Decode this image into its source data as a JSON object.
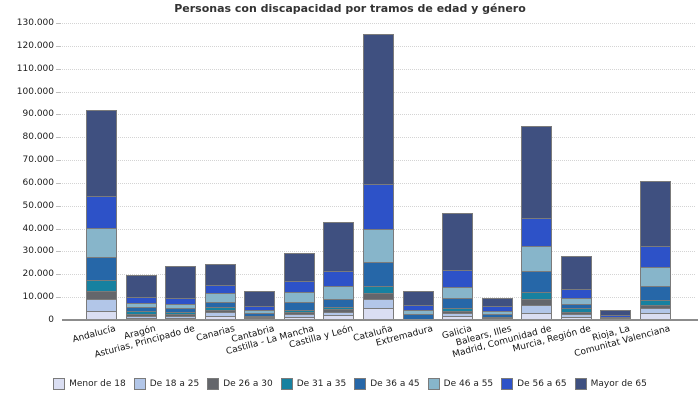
{
  "chart_data": {
    "type": "bar",
    "stacked": true,
    "title": "Personas con discapacidad por tramos de edad y género",
    "xlabel": "",
    "ylabel": "",
    "ylim": [
      0,
      130000
    ],
    "grid": "horizontal-dotted",
    "legend_position": "bottom",
    "y_tick_values": [
      0,
      10000,
      20000,
      30000,
      40000,
      50000,
      60000,
      70000,
      80000,
      90000,
      100000,
      110000,
      120000,
      130000
    ],
    "y_tick_labels": [
      "0",
      "10.000",
      "20.000",
      "30.000",
      "40.000",
      "50.000",
      "60.000",
      "70.000",
      "80.000",
      "90.000",
      "100.000",
      "110.000",
      "120.000",
      "130.000"
    ],
    "categories": [
      "Andalucía",
      "Aragón",
      "Asturias, Principado de",
      "Canarias",
      "Cantabria",
      "Castilla - La Mancha",
      "Castilla y León",
      "Cataluña",
      "Extremadura",
      "Galicia",
      "Balears, Illes",
      "Madrid, Comunidad de",
      "Murcia, Región de",
      "Rioja, La",
      "Comunitat Valenciana"
    ],
    "series": [
      {
        "name": "Menor de 18",
        "color": "#dadef2",
        "values": [
          3800,
          800,
          1000,
          1800,
          500,
          1400,
          2200,
          5200,
          150,
          1600,
          400,
          3100,
          1200,
          200,
          3100
        ]
      },
      {
        "name": "De 18 a 25",
        "color": "#b2c6e8",
        "values": [
          5500,
          900,
          900,
          1500,
          600,
          1300,
          1400,
          3900,
          150,
          1400,
          400,
          3300,
          1450,
          200,
          2100
        ]
      },
      {
        "name": "De 26 a 30",
        "color": "#64666b",
        "values": [
          3300,
          1100,
          600,
          900,
          300,
          700,
          1200,
          2800,
          100,
          900,
          200,
          2900,
          1000,
          100,
          1400
        ]
      },
      {
        "name": "De 31 a 35",
        "color": "#1781a0",
        "values": [
          4800,
          1300,
          1000,
          1500,
          500,
          1200,
          1100,
          3100,
          200,
          1400,
          400,
          2900,
          1400,
          200,
          2100
        ]
      },
      {
        "name": "De 36 a 45",
        "color": "#2667a8",
        "values": [
          10000,
          1700,
          1800,
          2300,
          1300,
          3400,
          3200,
          10500,
          1900,
          4300,
          1100,
          9400,
          2100,
          400,
          6400
        ]
      },
      {
        "name": "De 46 a 55",
        "color": "#87b5ca",
        "values": [
          12800,
          1700,
          1500,
          4000,
          1400,
          4200,
          5800,
          14500,
          2100,
          5000,
          1600,
          10900,
          2600,
          400,
          8200
        ]
      },
      {
        "name": "De 56 a 65",
        "color": "#2d52c8",
        "values": [
          13900,
          2500,
          2700,
          3300,
          1700,
          5000,
          6500,
          19500,
          2100,
          7200,
          1900,
          12000,
          3750,
          600,
          9000
        ]
      },
      {
        "name": "Mayor de 65",
        "color": "#3f5080",
        "values": [
          37900,
          9500,
          14000,
          9200,
          6200,
          12300,
          21600,
          65500,
          5800,
          25200,
          3500,
          40500,
          14500,
          2400,
          28700
        ]
      }
    ],
    "category_totals": [
      92000,
      19500,
      23500,
      24500,
      12500,
      29500,
      43000,
      125000,
      12500,
      47000,
      9500,
      85000,
      28000,
      4500,
      61000
    ],
    "style": {
      "bar_border_color": "#7b7b7b",
      "axis_color": "#8c8c8c",
      "gridline_color": "#d4d4d4",
      "title_color": "#333333",
      "background_color": "#ffffff"
    }
  }
}
